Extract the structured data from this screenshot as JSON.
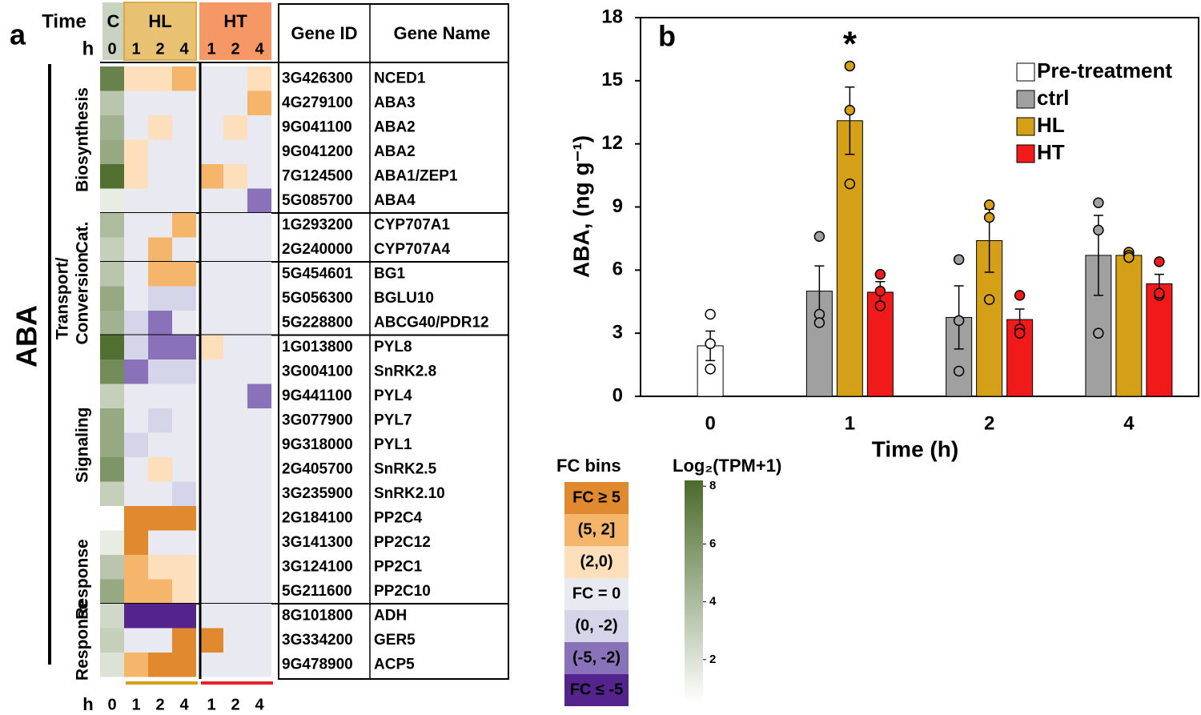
{
  "chart_data": [
    {
      "type": "heatmap",
      "panel_label": "a",
      "title": "ABA",
      "row_header": [
        "Time",
        "h"
      ],
      "column_groups": [
        {
          "name": "C",
          "color": "#c9d3c1",
          "columns": [
            "0"
          ]
        },
        {
          "name": "HL",
          "color": "#e9c173",
          "columns": [
            "1",
            "2",
            "4"
          ]
        },
        {
          "name": "HT",
          "color": "#f69766",
          "columns": [
            "1",
            "2",
            "4"
          ]
        }
      ],
      "bottom_axis_label": "h",
      "bottom_lines": {
        "HL": "#d4a017",
        "HT": "#e8212a"
      },
      "table_headers": [
        "Gene ID",
        "Gene Name"
      ],
      "groups": [
        {
          "label": [
            "Biosynthesis"
          ],
          "rule_below": true,
          "rows": [
            {
              "id": "3G426300",
              "name": "NCED1",
              "tpm": 7,
              "fc": [
                1,
                1,
                3,
                0,
                0,
                1
              ]
            },
            {
              "id": "4G279100",
              "name": "ABA3",
              "tpm": 3.5,
              "fc": [
                0,
                0,
                0,
                0,
                0,
                3
              ]
            },
            {
              "id": "9G041100",
              "name": "ABA2",
              "tpm": 4.5,
              "fc": [
                0,
                1,
                0,
                0,
                1,
                0
              ]
            },
            {
              "id": "9G041200",
              "name": "ABA2",
              "tpm": 5,
              "fc": [
                1,
                0,
                0,
                0,
                0,
                0
              ]
            },
            {
              "id": "7G124500",
              "name": "ABA1/ZEP1",
              "tpm": 8,
              "fc": [
                1,
                0,
                0,
                3,
                1,
                0
              ]
            },
            {
              "id": "5G085700",
              "name": "ABA4",
              "tpm": 1.5,
              "fc": [
                0,
                0,
                0,
                0,
                0,
                -3
              ]
            }
          ]
        },
        {
          "label": [
            "Cat."
          ],
          "rule_below": true,
          "rows": [
            {
              "id": "1G293200",
              "name": "CYP707A1",
              "tpm": 4,
              "fc": [
                0,
                0,
                3,
                0,
                0,
                0
              ]
            },
            {
              "id": "2G240000",
              "name": "CYP707A4",
              "tpm": 3,
              "fc": [
                0,
                3,
                0,
                0,
                0,
                0
              ]
            }
          ]
        },
        {
          "label": [
            "Transport/",
            "Conversion"
          ],
          "rule_below": true,
          "rows": [
            {
              "id": "5G454601",
              "name": "BG1",
              "tpm": 3.5,
              "fc": [
                0,
                3,
                3,
                0,
                0,
                0
              ]
            },
            {
              "id": "5G056300",
              "name": "BGLU10",
              "tpm": 5,
              "fc": [
                0,
                -1,
                -1,
                0,
                0,
                0
              ]
            },
            {
              "id": "5G228800",
              "name": "ABCG40/PDR12",
              "tpm": 4.5,
              "fc": [
                -1,
                -3,
                0,
                0,
                0,
                0
              ]
            }
          ]
        },
        {
          "label": [
            "Signaling"
          ],
          "rule_below": false,
          "rows": [
            {
              "id": "1G013800",
              "name": "PYL8",
              "tpm": 8,
              "fc": [
                -1,
                -3,
                -3,
                1,
                0,
                0
              ]
            },
            {
              "id": "3G004100",
              "name": "SnRK2.8",
              "tpm": 6.5,
              "fc": [
                -3,
                -1,
                -1,
                0,
                0,
                0
              ]
            },
            {
              "id": "9G441100",
              "name": "PYL4",
              "tpm": 3,
              "fc": [
                0,
                0,
                0,
                0,
                0,
                -3
              ]
            },
            {
              "id": "3G077900",
              "name": "PYL7",
              "tpm": 5,
              "fc": [
                0,
                -1,
                0,
                0,
                0,
                0
              ]
            },
            {
              "id": "9G318000",
              "name": "PYL1",
              "tpm": 5,
              "fc": [
                -1,
                0,
                0,
                0,
                0,
                0
              ]
            },
            {
              "id": "2G405700",
              "name": "SnRK2.5",
              "tpm": 6,
              "fc": [
                0,
                1,
                0,
                0,
                0,
                0
              ]
            },
            {
              "id": "3G235900",
              "name": "SnRK2.10",
              "tpm": 3,
              "fc": [
                0,
                0,
                -1,
                0,
                0,
                0
              ]
            },
            {
              "id": "2G184100",
              "name": "PP2C4",
              "tpm": 0.5,
              "fc": [
                6,
                6,
                6,
                0,
                0,
                0
              ]
            },
            {
              "id": "3G141300",
              "name": "PP2C12",
              "tpm": 1.5,
              "fc": [
                6,
                0,
                0,
                0,
                0,
                0
              ]
            }
          ]
        },
        {
          "label": [
            "Response"
          ],
          "rule_below": true,
          "rows": [
            {
              "id": "3G124100",
              "name": "PP2C1",
              "tpm": 3.5,
              "fc": [
                3,
                1,
                1,
                0,
                0,
                0
              ]
            },
            {
              "id": "5G211600",
              "name": "PP2C10",
              "tpm": 5,
              "fc": [
                3,
                3,
                1,
                0,
                0,
                0
              ]
            }
          ]
        },
        {
          "label": [
            "Response"
          ],
          "rule_below": false,
          "rows": [
            {
              "id": "8G101800",
              "name": "ADH",
              "tpm": 2.5,
              "fc": [
                -6,
                -6,
                -6,
                0,
                0,
                0
              ]
            },
            {
              "id": "3G334200",
              "name": "GER5",
              "tpm": 3,
              "fc": [
                0,
                0,
                6,
                6,
                0,
                0
              ]
            },
            {
              "id": "9G478900",
              "name": "ACP5",
              "tpm": 2,
              "fc": [
                3,
                6,
                6,
                0,
                0,
                0
              ]
            }
          ]
        }
      ],
      "fc_legend": {
        "title": "FC bins",
        "bins": [
          {
            "label": "FC ≥ 5",
            "color": "#e0892f",
            "text_color": "#ffffff",
            "min": 5
          },
          {
            "label": "(5, 2]",
            "color": "#f5b66c",
            "text_color": "#ffffff",
            "min": 2,
            "max": 5
          },
          {
            "label": "(2,0)",
            "color": "#fde0bb",
            "text_color": "#000000",
            "min": 0,
            "max": 2
          },
          {
            "label": "FC = 0",
            "color": "#e9e9f1",
            "text_color": "#000000",
            "min": 0,
            "max": 0
          },
          {
            "label": "(0, -2)",
            "color": "#d5d5e9",
            "text_color": "#000000",
            "min": -2,
            "max": 0
          },
          {
            "label": "(-5, -2)",
            "color": "#8a72bb",
            "text_color": "#ffffff",
            "min": -5,
            "max": -2
          },
          {
            "label": "FC ≤ -5",
            "color": "#55238e",
            "text_color": "#ffffff",
            "max": -5
          }
        ]
      },
      "tpm_legend": {
        "title": "Log₂(TPM+1)",
        "lim": [
          0.5,
          8.2
        ],
        "ticks": [
          2,
          4,
          6,
          8
        ],
        "colors": [
          "#ffffff",
          "#4b6b2b"
        ]
      }
    },
    {
      "type": "bar",
      "panel_label": "b",
      "annotation": "*",
      "xlabel": "Time (h)",
      "ylabel": "ABA, (ng g⁻¹)",
      "categories": [
        "0",
        "1",
        "2",
        "4"
      ],
      "ylim": [
        0,
        18
      ],
      "yticks": [
        0,
        3,
        6,
        9,
        12,
        15,
        18
      ],
      "legend": "upper right",
      "series": [
        {
          "name": "Pre-treatment",
          "color": "#ffffff",
          "values": [
            2.4,
            null,
            null,
            null
          ],
          "errors": [
            0.7,
            null,
            null,
            null
          ],
          "points": [
            [
              3.9,
              2.5,
              1.3
            ],
            null,
            null,
            null
          ]
        },
        {
          "name": "ctrl",
          "color": "#a0a0a0",
          "values": [
            null,
            5.0,
            3.75,
            6.7
          ],
          "errors": [
            null,
            1.2,
            1.5,
            1.9
          ],
          "points": [
            null,
            [
              7.6,
              3.9,
              3.5
            ],
            [
              6.5,
              3.6,
              1.2
            ],
            [
              9.2,
              7.9,
              3.0
            ]
          ]
        },
        {
          "name": "HL",
          "color": "#d4a017",
          "values": [
            null,
            13.1,
            7.4,
            6.7
          ],
          "errors": [
            null,
            1.6,
            1.5,
            0.1
          ],
          "points": [
            null,
            [
              15.7,
              13.6,
              10.1
            ],
            [
              9.1,
              8.5,
              4.6
            ],
            [
              6.85,
              6.7,
              6.6
            ]
          ]
        },
        {
          "name": "HT",
          "color": "#f01a1a",
          "values": [
            null,
            4.95,
            3.65,
            5.35
          ],
          "errors": [
            null,
            0.5,
            0.5,
            0.45
          ],
          "points": [
            null,
            [
              5.8,
              5.0,
              4.3
            ],
            [
              4.8,
              3.2,
              3.0
            ],
            [
              6.4,
              4.8,
              4.9
            ]
          ]
        }
      ]
    }
  ]
}
